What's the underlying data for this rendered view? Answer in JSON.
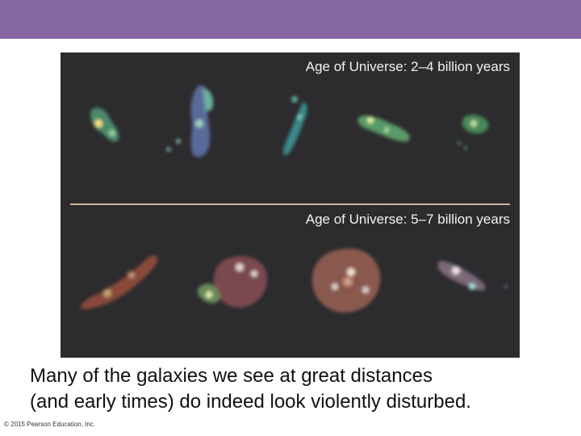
{
  "figure": {
    "label_top": "Age of Universe: 2–4 billion years",
    "label_bottom": "Age of Universe: 5–7 billion years"
  },
  "caption": {
    "line1": "Many of the galaxies we see at great distances",
    "line2": "(and early times) do indeed look violently disturbed."
  },
  "footer": {
    "copyright": "© 2015 Pearson Education, Inc."
  },
  "colors": {
    "header_bar": "#8466a0",
    "figure_background": "#2c2b2e"
  }
}
